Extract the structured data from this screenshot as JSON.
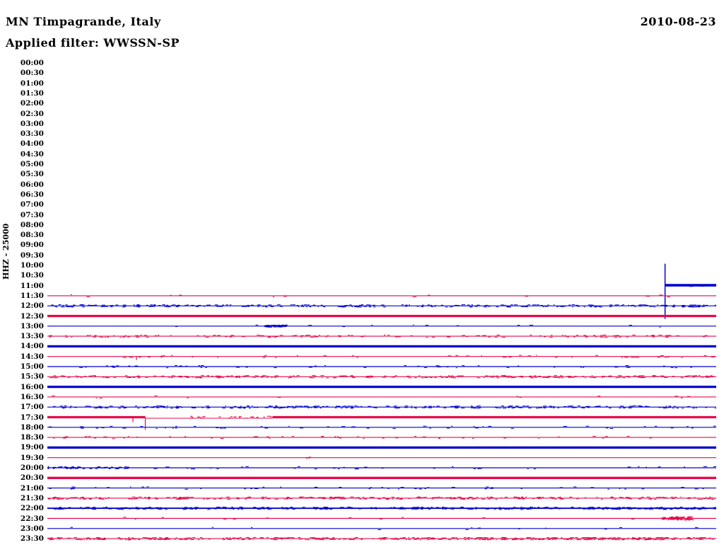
{
  "header": {
    "station": "MN Timpagrande, Italy",
    "filter_line": "Applied filter: WWSSN-SP",
    "date": "2010-08-23"
  },
  "y_axis": {
    "label": "HHZ - 25000"
  },
  "colors": {
    "red": "#e60a4a",
    "blue": "#0000cd",
    "text": "#000000",
    "background": "#ffffff"
  },
  "chart_data": {
    "type": "helicorder",
    "title": "MN Timpagrande, Italy",
    "subtitle": "Applied filter: WWSSN-SP",
    "date": "2010-08-23",
    "channel_scale_label": "HHZ - 25000",
    "time_axis": {
      "start": "00:00",
      "end": "23:30",
      "interval_minutes": 30,
      "rows_per_line_minutes": 30
    },
    "notes": "Recording starts ~11:27 with large onset spike; traces alternate blue (xx:00) and red (xx:30); small event burst ~22:57; calibration-like pulse ~17:34.",
    "rows": [
      {
        "time": "00:00",
        "color": null
      },
      {
        "time": "00:30",
        "color": null
      },
      {
        "time": "01:00",
        "color": null
      },
      {
        "time": "01:30",
        "color": null
      },
      {
        "time": "02:00",
        "color": null
      },
      {
        "time": "02:30",
        "color": null
      },
      {
        "time": "03:00",
        "color": null
      },
      {
        "time": "03:30",
        "color": null
      },
      {
        "time": "04:00",
        "color": null
      },
      {
        "time": "04:30",
        "color": null
      },
      {
        "time": "05:00",
        "color": null
      },
      {
        "time": "05:30",
        "color": null
      },
      {
        "time": "06:00",
        "color": null
      },
      {
        "time": "06:30",
        "color": null
      },
      {
        "time": "07:00",
        "color": null
      },
      {
        "time": "07:30",
        "color": null
      },
      {
        "time": "08:00",
        "color": null
      },
      {
        "time": "08:30",
        "color": null
      },
      {
        "time": "09:00",
        "color": null
      },
      {
        "time": "09:30",
        "color": null
      },
      {
        "time": "10:00",
        "color": null
      },
      {
        "time": "10:30",
        "color": null
      },
      {
        "time": "11:00",
        "color": "blue",
        "weight": "thick",
        "noise": "none",
        "segments": [
          {
            "f0": 0.9235,
            "f1": 1.0,
            "dy": -0.5,
            "w": 3.6
          }
        ],
        "events": [
          {
            "type": "vspike",
            "frac": 0.9235,
            "up": 31,
            "down": 47
          },
          {
            "type": "burst",
            "f0": 0.93,
            "f1": 1.0,
            "amp": 1.2,
            "n": 10
          }
        ]
      },
      {
        "time": "11:30",
        "color": "red",
        "weight": "thin",
        "noise": "faint"
      },
      {
        "time": "12:00",
        "color": "blue",
        "weight": "thin",
        "noise": "dense"
      },
      {
        "time": "12:30",
        "color": "red",
        "weight": "thick",
        "noise": "none"
      },
      {
        "time": "13:00",
        "color": "blue",
        "weight": "thin",
        "noise": "faint",
        "events": [
          {
            "type": "burst",
            "f0": 0.3235,
            "f1": 0.355,
            "amp": 1.6,
            "n": 45
          }
        ]
      },
      {
        "time": "13:30",
        "color": "red",
        "weight": "thin",
        "noise": "medium"
      },
      {
        "time": "14:00",
        "color": "blue",
        "weight": "thick",
        "noise": "none"
      },
      {
        "time": "14:30",
        "color": "red",
        "weight": "thin",
        "noise": "sparse",
        "events": [
          {
            "type": "spike",
            "frac": 0.1332,
            "down": 5
          }
        ]
      },
      {
        "time": "15:00",
        "color": "blue",
        "weight": "thin",
        "noise": "sparse"
      },
      {
        "time": "15:30",
        "color": "red",
        "weight": "thin",
        "noise": "dense"
      },
      {
        "time": "16:00",
        "color": "blue",
        "weight": "thick",
        "noise": "none"
      },
      {
        "time": "16:30",
        "color": "red",
        "weight": "thin",
        "noise": "faint"
      },
      {
        "time": "17:00",
        "color": "blue",
        "weight": "thin",
        "noise": "dense"
      },
      {
        "time": "17:30",
        "color": "red",
        "weight": "thick",
        "noise": "none",
        "segments": [
          {
            "f0": 0.0,
            "f1": 0.1464,
            "dy": 0,
            "w": 3.2
          },
          {
            "f0": 0.1464,
            "f1": 0.337,
            "dy": 1.5,
            "w": 1.1
          },
          {
            "f0": 0.337,
            "f1": 1.0,
            "dy": 0,
            "w": 3.2
          }
        ],
        "events": [
          {
            "type": "spike",
            "frac": 0.1279,
            "down": 7
          },
          {
            "type": "spike",
            "frac": 0.1464,
            "down": 18
          },
          {
            "type": "burst",
            "f0": 0.21,
            "f1": 0.335,
            "amp": 1.4,
            "n": 22
          }
        ]
      },
      {
        "time": "18:00",
        "color": "blue",
        "weight": "thin",
        "noise": "sparse"
      },
      {
        "time": "18:30",
        "color": "red",
        "weight": "thin",
        "noise": "sparse"
      },
      {
        "time": "19:00",
        "color": "blue",
        "weight": "thick",
        "noise": "none"
      },
      {
        "time": "19:30",
        "color": "red",
        "weight": "thin",
        "noise": "none",
        "events": [
          {
            "type": "burst",
            "f0": 0.386,
            "f1": 0.392,
            "amp": 1.2,
            "n": 4
          }
        ]
      },
      {
        "time": "20:00",
        "color": "blue",
        "weight": "thin",
        "noise": "sparse",
        "events": [
          {
            "type": "burst",
            "f0": 0.0,
            "f1": 0.12,
            "amp": 1.4,
            "n": 45
          }
        ]
      },
      {
        "time": "20:30",
        "color": "red",
        "weight": "thick",
        "noise": "none"
      },
      {
        "time": "21:00",
        "color": "blue",
        "weight": "thin",
        "noise": "sparse"
      },
      {
        "time": "21:30",
        "color": "red",
        "weight": "thin",
        "noise": "dense"
      },
      {
        "time": "22:00",
        "color": "blue",
        "weight": "med",
        "noise": "dense"
      },
      {
        "time": "22:30",
        "color": "red",
        "weight": "thin",
        "noise": "faint",
        "events": [
          {
            "type": "burst",
            "f0": 0.9154,
            "f1": 0.963,
            "amp": 2.4,
            "n": 70
          },
          {
            "type": "seg",
            "f0": 0.93,
            "f1": 0.947,
            "dy": 0,
            "w": 3.0
          }
        ]
      },
      {
        "time": "23:00",
        "color": "blue",
        "weight": "thin",
        "noise": "faint"
      },
      {
        "time": "23:30",
        "color": "red",
        "weight": "thin",
        "noise": "heavy"
      }
    ]
  }
}
